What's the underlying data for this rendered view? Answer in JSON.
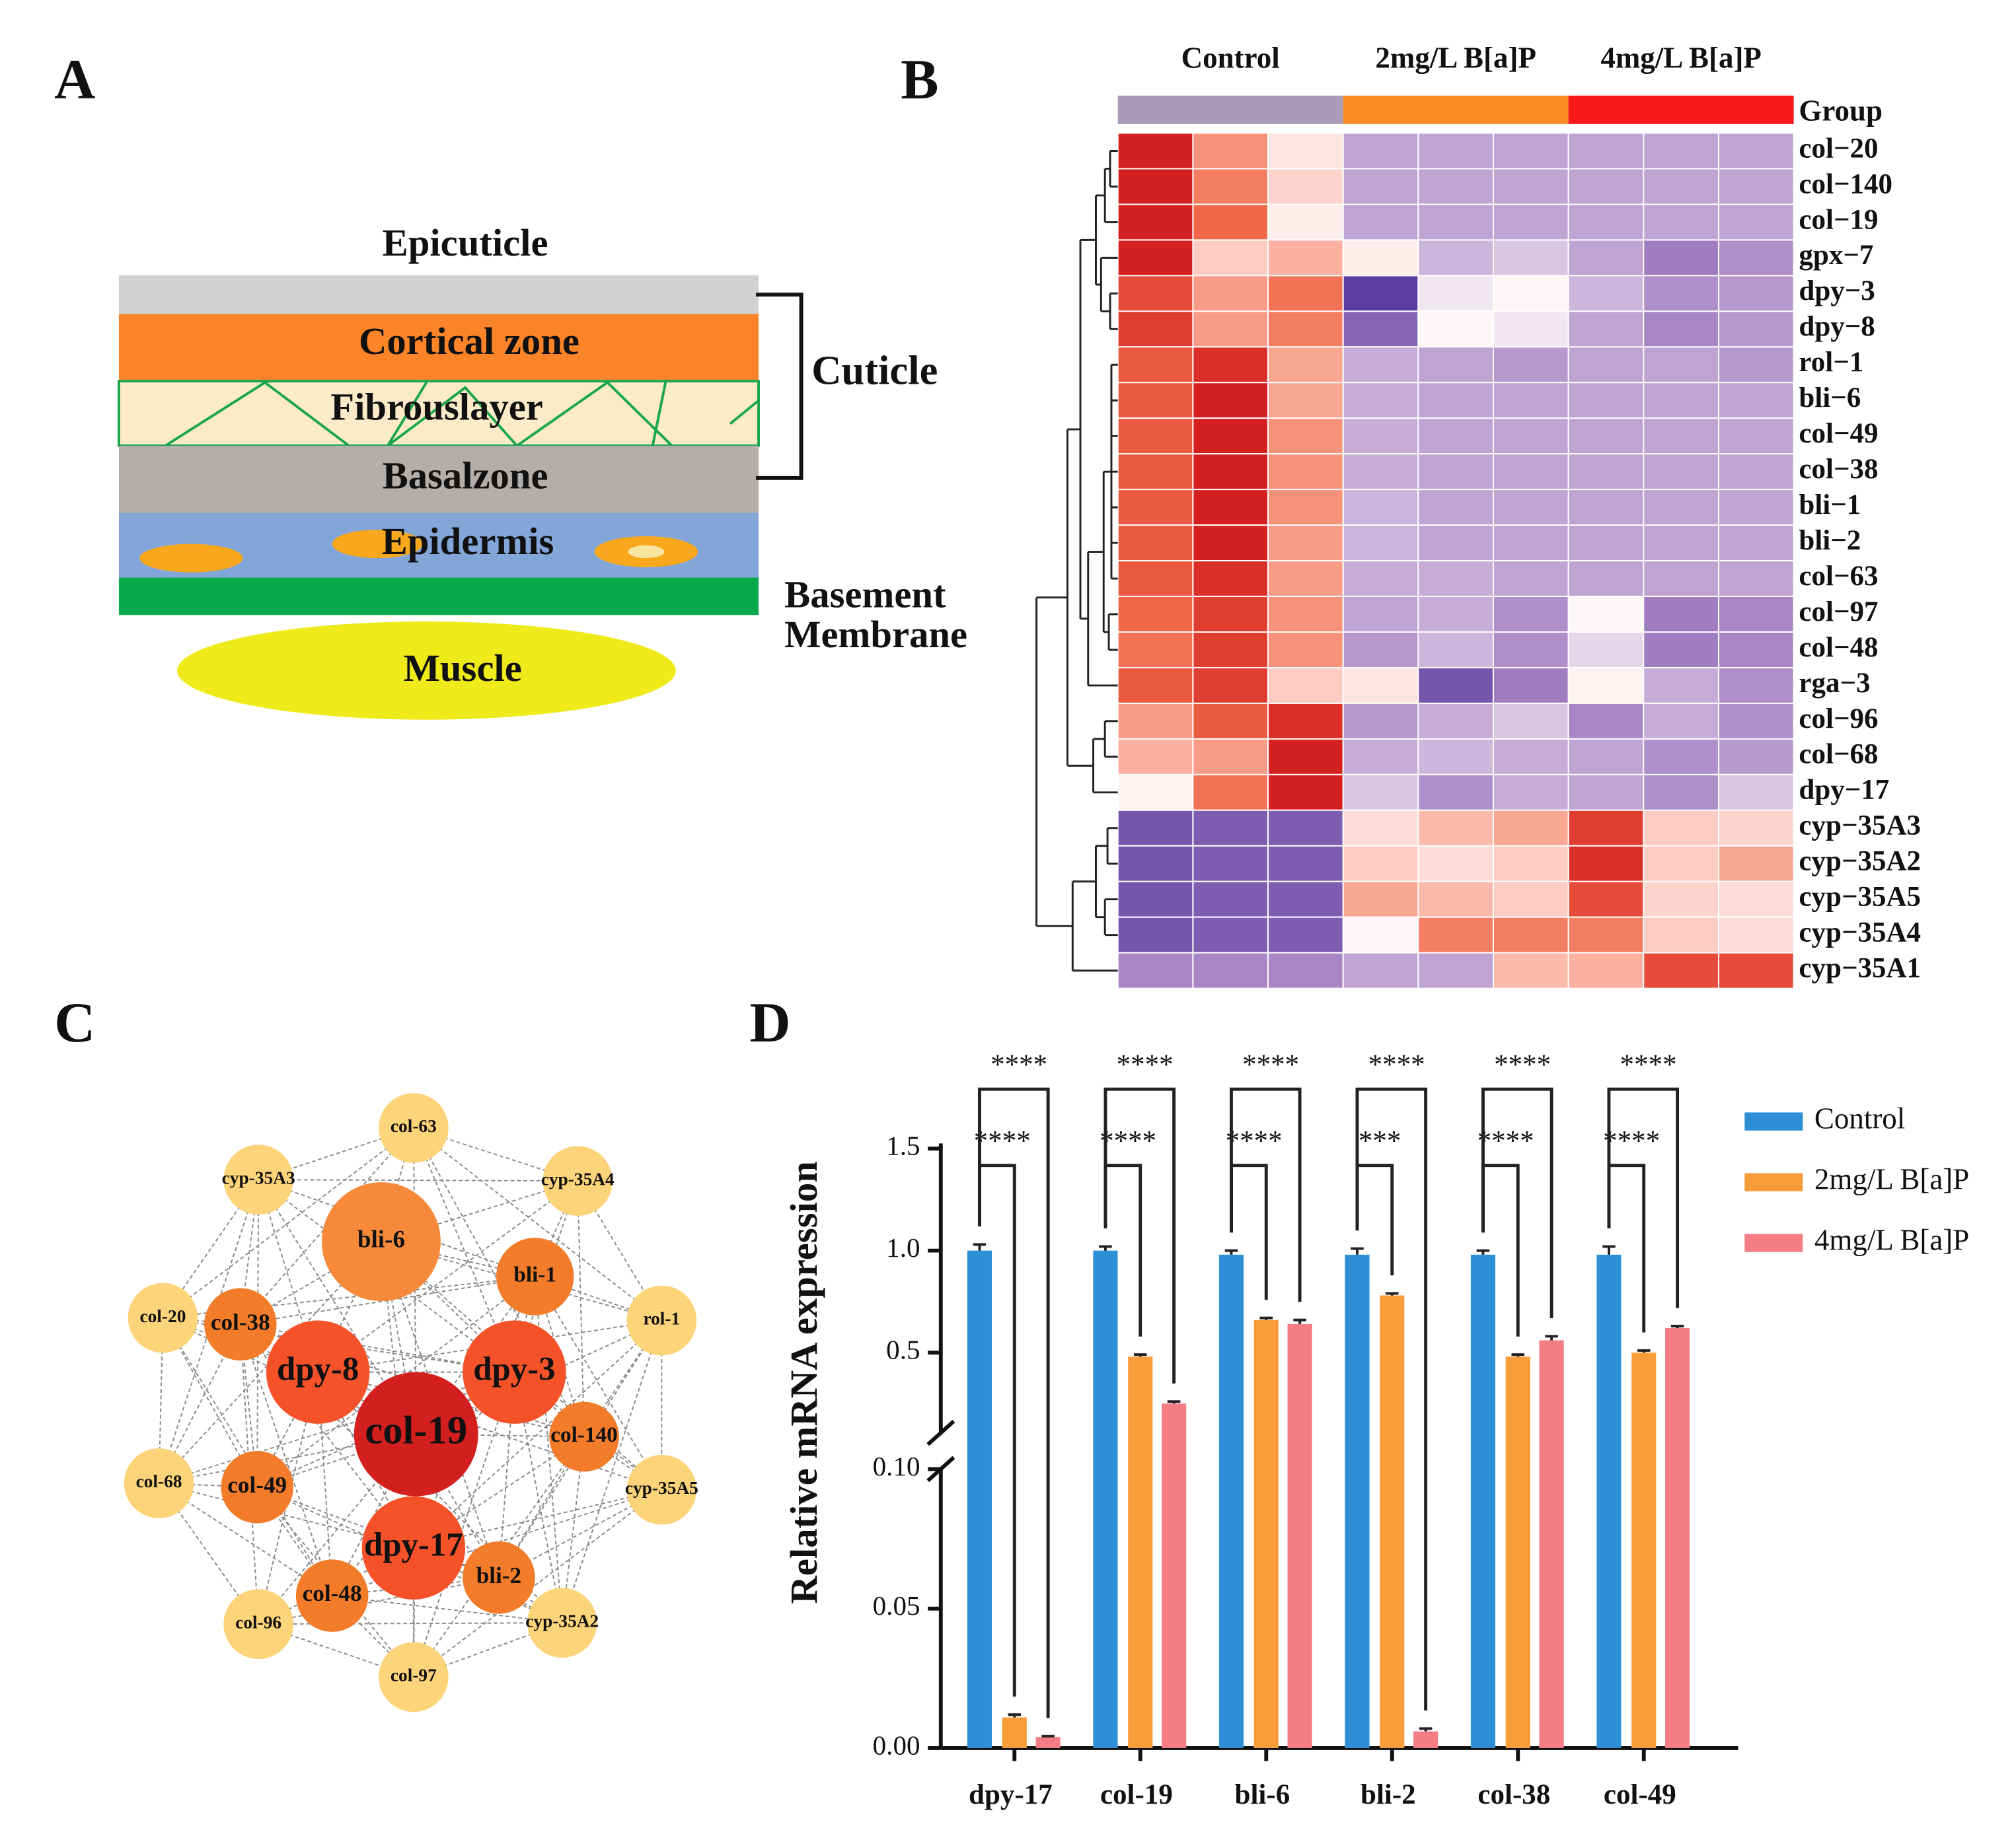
{
  "panel_labels": [
    "A",
    "B",
    "C",
    "D"
  ],
  "diagram": {
    "epicuticle": "Epicuticle",
    "cortical_zone": "Cortical zone",
    "fibrous_layer": "Fibrouslayer",
    "basal_zone": "Basalzone",
    "epidermis": "Epidermis",
    "basement_membrane": [
      "Basement",
      "Membrane"
    ],
    "muscle": "Muscle",
    "cuticle": "Cuticle"
  },
  "network": {
    "nodes": [
      "col-63",
      "cyp-35A3",
      "cyp-35A4",
      "bli-6",
      "bli-1",
      "col-20",
      "col-38",
      "rol-1",
      "dpy-8",
      "dpy-3",
      "col-19",
      "col-140",
      "col-68",
      "col-49",
      "cyp-35A5",
      "dpy-17",
      "bli-2",
      "col-48",
      "cyp-35A2",
      "col-96",
      "col-97"
    ]
  },
  "chart_data": [
    {
      "type": "heatmap",
      "groups": [
        {
          "name": "Control",
          "color": "#a99bb8",
          "columns": 3
        },
        {
          "name": "2mg/L B[a]P",
          "color": "#f98c25",
          "columns": 3
        },
        {
          "name": "4mg/L B[a]P",
          "color": "#f91b1b",
          "columns": 3
        }
      ],
      "group_label": "Group",
      "rows": [
        "col−20",
        "col−140",
        "col−19",
        "gpx−7",
        "dpy−3",
        "dpy−8",
        "rol−1",
        "bli−6",
        "col−49",
        "col−38",
        "bli−1",
        "bli−2",
        "col−63",
        "col−97",
        "col−48",
        "rga−3",
        "col−96",
        "col−68",
        "dpy−17",
        "cyp−35A3",
        "cyp−35A2",
        "cyp−35A5",
        "cyp−35A4",
        "cyp−35A1"
      ],
      "colorscale": [
        [
          -2,
          "#4b2f9a"
        ],
        [
          -1,
          "#a07cc0"
        ],
        [
          -0.4,
          "#cdb6dc"
        ],
        [
          0,
          "#fdf7f7"
        ],
        [
          0.8,
          "#fbb0a0"
        ],
        [
          1.5,
          "#f06848"
        ],
        [
          2,
          "#d42020"
        ]
      ],
      "values": [
        [
          2,
          1.1,
          0.2,
          -0.6,
          -0.6,
          -0.6,
          -0.6,
          -0.6,
          -0.6
        ],
        [
          2,
          1.3,
          0.4,
          -0.6,
          -0.6,
          -0.6,
          -0.6,
          -0.6,
          -0.6
        ],
        [
          2,
          1.5,
          0.1,
          -0.6,
          -0.6,
          -0.6,
          -0.6,
          -0.6,
          -0.6
        ],
        [
          2,
          0.5,
          0.8,
          0.1,
          -0.4,
          -0.3,
          -0.6,
          -1,
          -0.8
        ],
        [
          1.7,
          1,
          1.4,
          -1.8,
          -0.1,
          0,
          -0.4,
          -0.8,
          -0.7
        ],
        [
          1.8,
          1,
          1.3,
          -1.3,
          0,
          -0.1,
          -0.6,
          -0.9,
          -0.7
        ],
        [
          1.6,
          1.9,
          0.9,
          -0.5,
          -0.6,
          -0.7,
          -0.6,
          -0.6,
          -0.7
        ],
        [
          1.6,
          2,
          0.9,
          -0.5,
          -0.6,
          -0.6,
          -0.6,
          -0.6,
          -0.6
        ],
        [
          1.6,
          2,
          1.1,
          -0.5,
          -0.6,
          -0.6,
          -0.6,
          -0.6,
          -0.6
        ],
        [
          1.6,
          2,
          1.1,
          -0.5,
          -0.6,
          -0.6,
          -0.6,
          -0.6,
          -0.6
        ],
        [
          1.6,
          2,
          1.1,
          -0.4,
          -0.6,
          -0.6,
          -0.6,
          -0.6,
          -0.6
        ],
        [
          1.6,
          2,
          1.0,
          -0.4,
          -0.6,
          -0.6,
          -0.6,
          -0.6,
          -0.6
        ],
        [
          1.6,
          1.9,
          1.0,
          -0.5,
          -0.5,
          -0.6,
          -0.6,
          -0.6,
          -0.6
        ],
        [
          1.5,
          1.8,
          1.1,
          -0.6,
          -0.5,
          -0.8,
          0,
          -1,
          -0.9
        ],
        [
          1.4,
          1.8,
          1.1,
          -0.7,
          -0.4,
          -0.8,
          -0.2,
          -1,
          -0.9
        ],
        [
          1.6,
          1.8,
          0.5,
          0.2,
          -1.5,
          -1,
          0.05,
          -0.5,
          -0.8
        ],
        [
          1,
          1.6,
          1.9,
          -0.7,
          -0.5,
          -0.3,
          -0.9,
          -0.5,
          -0.8
        ],
        [
          0.8,
          1,
          2,
          -0.5,
          -0.4,
          -0.5,
          -0.6,
          -0.8,
          -0.7
        ],
        [
          0.05,
          1.4,
          2,
          -0.3,
          -0.8,
          -0.5,
          -0.6,
          -0.8,
          -0.3
        ],
        [
          -1.5,
          -1.4,
          -1.4,
          0.3,
          0.7,
          0.9,
          1.8,
          0.5,
          0.4
        ],
        [
          -1.5,
          -1.4,
          -1.4,
          0.5,
          0.3,
          0.5,
          1.9,
          0.5,
          0.9
        ],
        [
          -1.5,
          -1.4,
          -1.4,
          0.9,
          0.7,
          0.5,
          1.7,
          0.4,
          0.3
        ],
        [
          -1.5,
          -1.4,
          -1.4,
          0,
          1.3,
          1.3,
          1.3,
          0.5,
          0.3
        ],
        [
          -0.9,
          -0.9,
          -0.9,
          -0.6,
          -0.6,
          0.7,
          0.8,
          1.7,
          1.7
        ]
      ]
    },
    {
      "type": "bar",
      "ylabel": "Relative mRNA expression",
      "categories": [
        "dpy-17",
        "col-19",
        "bli-6",
        "bli-2",
        "col-38",
        "col-49"
      ],
      "series": [
        {
          "name": "Control",
          "color": "#2e8fd6",
          "values": [
            1.0,
            1.0,
            0.98,
            0.98,
            0.98,
            0.98
          ],
          "errors": [
            0.03,
            0.02,
            0.02,
            0.03,
            0.02,
            0.04
          ]
        },
        {
          "name": "2mg/L B[a]P",
          "color": "#f99d3a",
          "values": [
            0.011,
            0.48,
            0.66,
            0.78,
            0.48,
            0.5
          ],
          "errors": [
            0.001,
            0.01,
            0.01,
            0.01,
            0.01,
            0.01
          ]
        },
        {
          "name": "4mg/L B[a]P",
          "color": "#f57d85",
          "values": [
            0.004,
            0.25,
            0.64,
            0.006,
            0.56,
            0.62
          ],
          "errors": [
            0.0003,
            0.01,
            0.02,
            0.001,
            0.02,
            0.01
          ]
        }
      ],
      "ylim": [
        0,
        1.5
      ],
      "ybreak": 0.1,
      "yticks": [
        {
          "value": 0,
          "label": "0.00"
        },
        0.05,
        {
          "value": 0.1,
          "label": "0.10"
        },
        0.5,
        {
          "value": 1,
          "label": "1.0"
        },
        1.5
      ],
      "significance": [
        [
          "****",
          "****"
        ],
        [
          "****",
          "****"
        ],
        [
          "****",
          "****"
        ],
        [
          "***",
          "****"
        ],
        [
          "****",
          "****"
        ],
        [
          "****",
          "****"
        ]
      ]
    }
  ]
}
